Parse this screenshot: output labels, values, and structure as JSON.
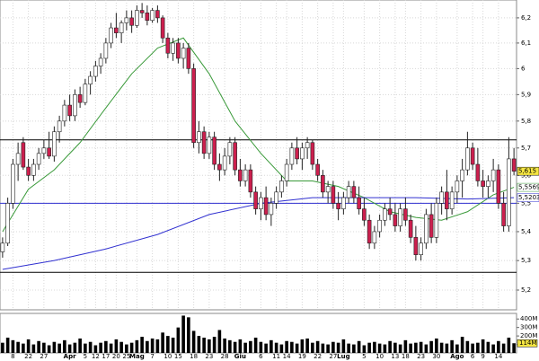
{
  "chart_data": {
    "type": "candlestick",
    "xlim": [
      -0.5,
      99.5
    ],
    "ylim": [
      5.134,
      6.272
    ],
    "log_scale": true,
    "grid": true,
    "xticks": [
      {
        "value": 2,
        "label": "8"
      },
      {
        "value": 5,
        "label": "22"
      },
      {
        "value": 8,
        "label": "27"
      },
      {
        "value": 13,
        "label": "Apr"
      },
      {
        "value": 16,
        "label": "5"
      },
      {
        "value": 18,
        "label": "12"
      },
      {
        "value": 20,
        "label": "17"
      },
      {
        "value": 22,
        "label": "20"
      },
      {
        "value": 24,
        "label": "25"
      },
      {
        "value": 26,
        "label": "Mag"
      },
      {
        "value": 29,
        "label": "7"
      },
      {
        "value": 32,
        "label": "10"
      },
      {
        "value": 34,
        "label": "15"
      },
      {
        "value": 37,
        "label": "18"
      },
      {
        "value": 40,
        "label": "23"
      },
      {
        "value": 43,
        "label": "28"
      },
      {
        "value": 46,
        "label": "Giu"
      },
      {
        "value": 50,
        "label": "6"
      },
      {
        "value": 53,
        "label": "11"
      },
      {
        "value": 55,
        "label": "14"
      },
      {
        "value": 58,
        "label": "19"
      },
      {
        "value": 61,
        "label": "22"
      },
      {
        "value": 64,
        "label": "27"
      },
      {
        "value": 66,
        "label": "Lug"
      },
      {
        "value": 70,
        "label": "5"
      },
      {
        "value": 73,
        "label": "10"
      },
      {
        "value": 76,
        "label": "13"
      },
      {
        "value": 78,
        "label": "18"
      },
      {
        "value": 81,
        "label": "23"
      },
      {
        "value": 84,
        "label": "30"
      },
      {
        "value": 88,
        "label": "Ago"
      },
      {
        "value": 91,
        "label": "6"
      },
      {
        "value": 93,
        "label": "9"
      },
      {
        "value": 96,
        "label": "14"
      }
    ],
    "yticks": [
      {
        "value": 5.2,
        "label": "5,2"
      },
      {
        "value": 5.3,
        "label": "5,3"
      },
      {
        "value": 5.4,
        "label": "5,4"
      },
      {
        "value": 5.5,
        "label": "5,5"
      },
      {
        "value": 5.6,
        "label": "5,6"
      },
      {
        "value": 5.7,
        "label": "5,7"
      },
      {
        "value": 5.8,
        "label": "5,8"
      },
      {
        "value": 5.9,
        "label": "5,9"
      },
      6,
      {
        "value": 6.1,
        "label": "6,1"
      },
      {
        "value": 6.2,
        "label": "6,2"
      }
    ],
    "up_color": "#ffffff",
    "down_color": "#cc1f4e",
    "open": [
      5.33,
      5.36,
      5.5,
      5.64,
      5.72,
      5.63,
      5.6,
      5.64,
      5.68,
      5.7,
      5.67,
      5.76,
      5.8,
      5.86,
      5.82,
      5.9,
      5.87,
      5.94,
      5.97,
      6.01,
      6.04,
      6.1,
      6.16,
      6.14,
      6.18,
      6.2,
      6.17,
      6.23,
      6.22,
      6.19,
      6.23,
      6.2,
      6.12,
      6.06,
      6.1,
      6.04,
      6.08,
      6.0,
      5.72,
      5.76,
      5.68,
      5.74,
      5.64,
      5.62,
      5.67,
      5.72,
      5.62,
      5.58,
      5.62,
      5.54,
      5.48,
      5.52,
      5.46,
      5.5,
      5.54,
      5.58,
      5.64,
      5.7,
      5.66,
      5.7,
      5.72,
      5.64,
      5.6,
      5.54,
      5.56,
      5.5,
      5.48,
      5.52,
      5.56,
      5.52,
      5.48,
      5.44,
      5.36,
      5.4,
      5.44,
      5.48,
      5.46,
      5.42,
      5.48,
      5.44,
      5.38,
      5.32,
      5.36,
      5.46,
      5.38,
      5.5,
      5.54,
      5.48,
      5.54,
      5.58,
      5.62,
      5.7,
      5.64,
      5.58,
      5.56,
      5.58,
      5.62,
      5.5,
      5.42,
      5.66
    ],
    "high": [
      5.38,
      5.52,
      5.66,
      5.72,
      5.74,
      5.66,
      5.66,
      5.7,
      5.73,
      5.76,
      5.78,
      5.82,
      5.88,
      5.9,
      5.92,
      5.93,
      5.96,
      5.99,
      6.03,
      6.06,
      6.12,
      6.18,
      6.22,
      6.19,
      6.23,
      6.23,
      6.25,
      6.26,
      6.25,
      6.24,
      6.25,
      6.21,
      6.14,
      6.12,
      6.12,
      6.1,
      6.1,
      6.02,
      5.8,
      5.78,
      5.76,
      5.76,
      5.68,
      5.7,
      5.74,
      5.74,
      5.66,
      5.64,
      5.64,
      5.56,
      5.54,
      5.56,
      5.52,
      5.56,
      5.6,
      5.66,
      5.72,
      5.74,
      5.72,
      5.74,
      5.73,
      5.66,
      5.62,
      5.58,
      5.58,
      5.54,
      5.54,
      5.58,
      5.58,
      5.56,
      5.52,
      5.46,
      5.42,
      5.46,
      5.5,
      5.52,
      5.5,
      5.5,
      5.52,
      5.46,
      5.42,
      5.38,
      5.48,
      5.5,
      5.52,
      5.56,
      5.62,
      5.56,
      5.6,
      5.66,
      5.76,
      5.72,
      5.7,
      5.62,
      5.6,
      5.66,
      5.64,
      5.54,
      5.74,
      5.7
    ],
    "low": [
      5.31,
      5.35,
      5.48,
      5.58,
      5.62,
      5.58,
      5.58,
      5.62,
      5.66,
      5.66,
      5.65,
      5.72,
      5.78,
      5.8,
      5.8,
      5.85,
      5.86,
      5.9,
      5.95,
      5.98,
      6.02,
      6.08,
      6.12,
      6.1,
      6.15,
      6.14,
      6.16,
      6.2,
      6.17,
      6.18,
      6.18,
      6.1,
      6.04,
      6.03,
      6.02,
      6.0,
      5.98,
      5.7,
      5.68,
      5.66,
      5.66,
      5.62,
      5.58,
      5.6,
      5.64,
      5.6,
      5.56,
      5.56,
      5.52,
      5.46,
      5.44,
      5.44,
      5.42,
      5.48,
      5.52,
      5.56,
      5.62,
      5.64,
      5.62,
      5.66,
      5.62,
      5.58,
      5.52,
      5.5,
      5.48,
      5.44,
      5.46,
      5.5,
      5.5,
      5.46,
      5.42,
      5.34,
      5.34,
      5.38,
      5.42,
      5.44,
      5.4,
      5.4,
      5.42,
      5.36,
      5.3,
      5.3,
      5.34,
      5.36,
      5.36,
      5.46,
      5.44,
      5.46,
      5.5,
      5.52,
      5.6,
      5.62,
      5.56,
      5.52,
      5.52,
      5.54,
      5.48,
      5.4,
      5.4,
      5.6
    ],
    "close": [
      5.36,
      5.5,
      5.64,
      5.68,
      5.63,
      5.6,
      5.64,
      5.68,
      5.7,
      5.67,
      5.76,
      5.8,
      5.86,
      5.82,
      5.9,
      5.87,
      5.94,
      5.97,
      6.01,
      6.04,
      6.1,
      6.16,
      6.14,
      6.18,
      6.2,
      6.17,
      6.23,
      6.22,
      6.19,
      6.23,
      6.2,
      6.12,
      6.06,
      6.1,
      6.04,
      6.08,
      6.0,
      5.72,
      5.76,
      5.68,
      5.74,
      5.64,
      5.62,
      5.67,
      5.72,
      5.62,
      5.58,
      5.62,
      5.54,
      5.48,
      5.52,
      5.46,
      5.5,
      5.54,
      5.58,
      5.64,
      5.7,
      5.66,
      5.7,
      5.72,
      5.64,
      5.6,
      5.54,
      5.56,
      5.5,
      5.48,
      5.52,
      5.56,
      5.52,
      5.48,
      5.44,
      5.36,
      5.4,
      5.44,
      5.48,
      5.46,
      5.42,
      5.48,
      5.44,
      5.38,
      5.32,
      5.36,
      5.46,
      5.38,
      5.5,
      5.54,
      5.48,
      5.54,
      5.58,
      5.62,
      5.7,
      5.64,
      5.58,
      5.56,
      5.58,
      5.62,
      5.5,
      5.42,
      5.66,
      5.615
    ],
    "series": [
      {
        "color": "#3a9a3a",
        "x": [
          0,
          5,
          10,
          15,
          20,
          25,
          30,
          35,
          40,
          45,
          50,
          55,
          60,
          65,
          70,
          75,
          80,
          85,
          90,
          95,
          99
        ],
        "values": [
          5.4,
          5.55,
          5.62,
          5.72,
          5.85,
          5.98,
          6.08,
          6.12,
          5.98,
          5.8,
          5.68,
          5.58,
          5.58,
          5.56,
          5.52,
          5.47,
          5.45,
          5.44,
          5.47,
          5.53,
          5.557
        ]
      },
      {
        "color": "#3030d0",
        "x": [
          0,
          10,
          20,
          30,
          40,
          50,
          60,
          70,
          80,
          90,
          99
        ],
        "values": [
          5.27,
          5.3,
          5.34,
          5.39,
          5.46,
          5.5,
          5.52,
          5.52,
          5.52,
          5.515,
          5.52
        ]
      }
    ],
    "hlines": [
      {
        "value": 5.73,
        "color": "#000000"
      },
      {
        "value": 5.26,
        "color": "#000000"
      },
      {
        "value": 5.5,
        "color": "#3030d0"
      }
    ],
    "price_labels": [
      {
        "value": 5.615,
        "label": "5,615",
        "color": "#000000",
        "background": "#f5e642"
      },
      {
        "value": 5.5569,
        "label": "5,5569",
        "color": "#3a9a3a",
        "background": "#ffffff"
      },
      {
        "value": 5.5203,
        "label": "5,5203",
        "color": "#3030d0",
        "background": "#ffffff"
      }
    ],
    "volume": {
      "color": "#000000",
      "ylim": [
        0,
        466
      ],
      "yticks": [
        {
          "value": 100,
          "label": "100M"
        },
        {
          "value": 200,
          "label": "200M"
        },
        {
          "value": 300,
          "label": "300M"
        },
        {
          "value": 400,
          "label": "400M"
        }
      ],
      "values": [
        120,
        180,
        150,
        130,
        110,
        160,
        100,
        140,
        120,
        90,
        130,
        110,
        150,
        100,
        120,
        170,
        110,
        130,
        90,
        120,
        140,
        110,
        160,
        130,
        100,
        120,
        150,
        190,
        140,
        170,
        160,
        240,
        200,
        180,
        300,
        440,
        420,
        260,
        200,
        180,
        160,
        190,
        270,
        170,
        150,
        130,
        160,
        120,
        140,
        180,
        130,
        110,
        150,
        120,
        100,
        140,
        130,
        110,
        160,
        170,
        120,
        140,
        110,
        100,
        130,
        120,
        160,
        110,
        100,
        140,
        90,
        120,
        130,
        110,
        100,
        140,
        120,
        100,
        150,
        110,
        120,
        130,
        100,
        140,
        170,
        120,
        110,
        150,
        100,
        190,
        140,
        110,
        120,
        160,
        130,
        100,
        140,
        110,
        180,
        114
      ],
      "last_label": {
        "value": 114,
        "label": "114M",
        "background": "#f5e642"
      }
    }
  }
}
